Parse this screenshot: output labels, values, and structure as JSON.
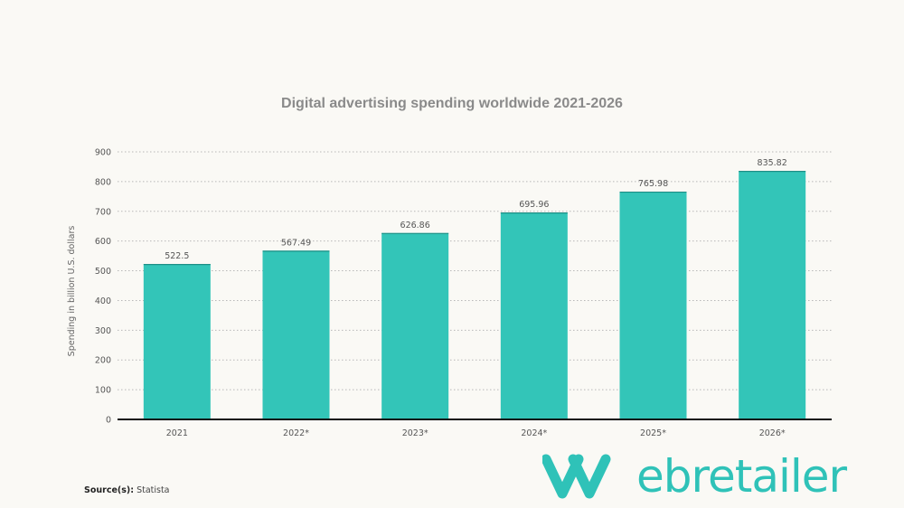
{
  "chart_data": {
    "type": "bar",
    "title": "Digital advertising spending worldwide 2021-2026",
    "ylabel": "Spending in billion U.S. dollars",
    "xlabel": "",
    "categories": [
      "2021",
      "2022*",
      "2023*",
      "2024*",
      "2025*",
      "2026*"
    ],
    "values": [
      522.5,
      567.49,
      626.86,
      695.96,
      765.98,
      835.82
    ],
    "value_labels": [
      "522.5",
      "567.49",
      "626.86",
      "695.96",
      "765.98",
      "835.82"
    ],
    "ylim": [
      0,
      900
    ],
    "yticks": [
      0,
      100,
      200,
      300,
      400,
      500,
      600,
      700,
      800,
      900
    ],
    "grid": true,
    "bar_color": "#33c5b8"
  },
  "source": {
    "label": "Source(s):",
    "value": "Statista"
  },
  "brand": {
    "name": "ebretailer",
    "color": "#2fc2b8"
  }
}
